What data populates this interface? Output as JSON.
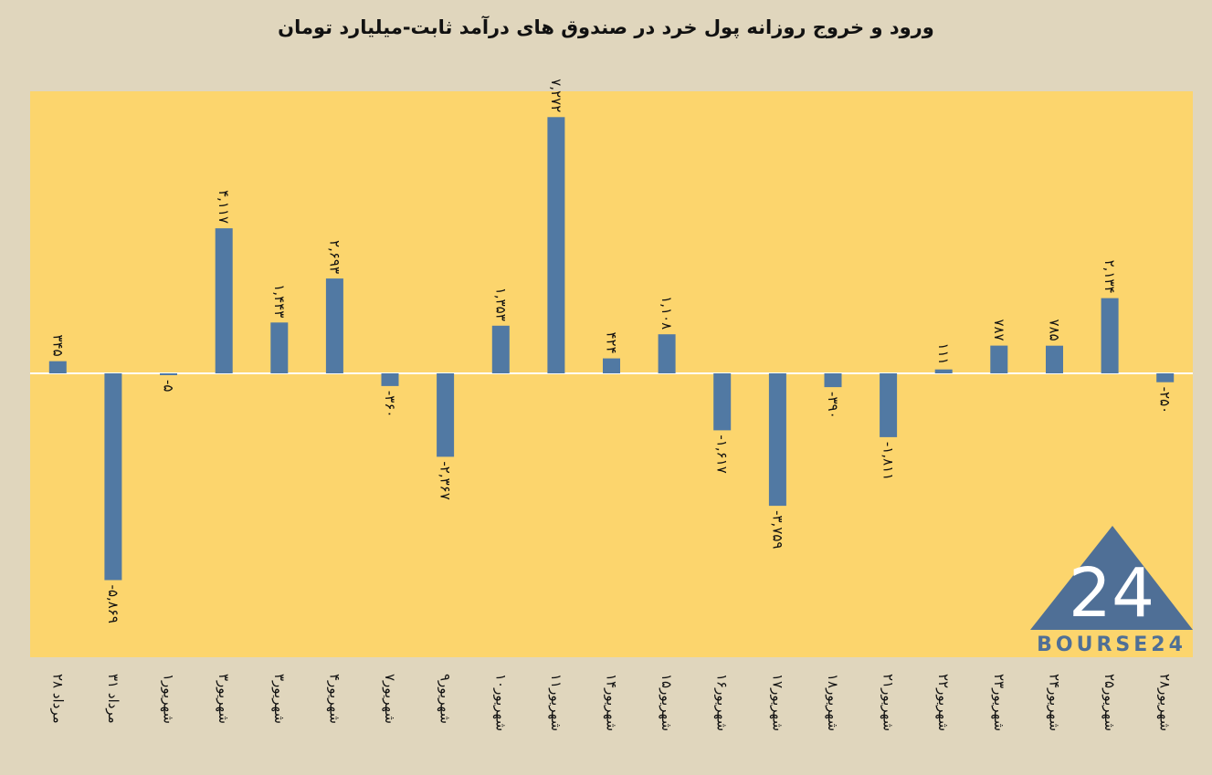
{
  "chart_data": {
    "type": "bar",
    "title": "ورود و خروج روزانه پول خرد در صندوق های درآمد ثابت-میلیارد تومان",
    "categories": [
      "۲۸ مرداد",
      "۳۱ مرداد",
      "۱شهریور",
      "۳شهریور",
      "۳شهریور",
      "۴شهریور",
      "۷شهریور",
      "۹شهریور",
      "۱۰شهریور",
      "۱۱شهریور",
      "۱۴شهریور",
      "۱۵شهریور",
      "۱۶شهریور",
      "۱۷شهریور",
      "۱۸شهریور",
      "۲۱شهریور",
      "۲۲شهریور",
      "۲۳شهریور",
      "۲۴شهریور",
      "۲۵شهریور",
      "۲۸شهریور"
    ],
    "values": [
      345,
      -5869,
      -5,
      4117,
      1443,
      2693,
      -360,
      -2367,
      1353,
      7272,
      424,
      1108,
      -1617,
      -3759,
      -390,
      -1811,
      111,
      787,
      785,
      2134,
      -250
    ],
    "value_labels": [
      "۳۴۵",
      "-۵,۸۶۹",
      "-۵",
      "۴,۱۱۷",
      "۱,۴۴۳",
      "۲,۶۹۳",
      "-۳۶۰",
      "-۲,۳۶۷",
      "۱,۳۵۳",
      "۷,۲۷۲",
      "۴۲۴",
      "۱,۱۰۸",
      "-۱,۶۱۷",
      "-۳,۷۵۹",
      "-۳۹۰",
      "-۱,۸۱۱",
      "۱۱۱",
      "۷۸۷",
      "۷۸۵",
      "۲,۱۳۴",
      "-۲۵۰"
    ],
    "ylim": [
      -7500,
      8000
    ],
    "xlabel": "",
    "ylabel": "",
    "grid": false,
    "colors": {
      "bar": "#5179a3",
      "plot_bg": "#fcd56d",
      "page_bg": "#e0d6bd",
      "zero_line": "#ffffff"
    }
  },
  "watermark": {
    "text": "BOURSE24",
    "mark": "24"
  }
}
